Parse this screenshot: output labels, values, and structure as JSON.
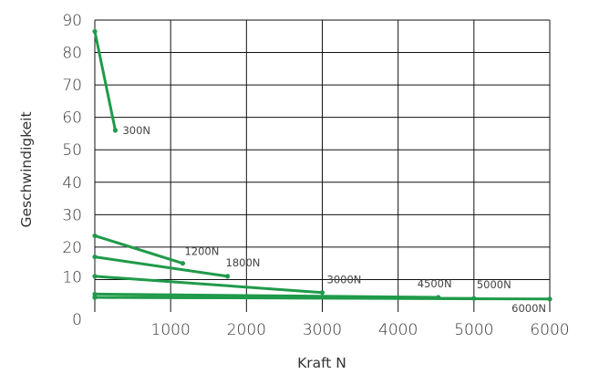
{
  "chart_data": {
    "type": "line",
    "title": "",
    "xlabel": "Kraft N",
    "ylabel": "Geschwindigkeit",
    "xlim": [
      0,
      6000
    ],
    "ylim": [
      0,
      90
    ],
    "x_ticks": [
      "0",
      "1000",
      "2000",
      "3000",
      "4000",
      "5000",
      "6000"
    ],
    "y_ticks": [
      "0",
      "10",
      "20",
      "30",
      "40",
      "50",
      "60",
      "70",
      "80",
      "90"
    ],
    "grid": true,
    "line_color": "#1f9a4a",
    "series": [
      {
        "name": "300N",
        "x": [
          0,
          270
        ],
        "y": [
          86.5,
          56
        ]
      },
      {
        "name": "1200N",
        "x": [
          0,
          1160
        ],
        "y": [
          23.5,
          15
        ]
      },
      {
        "name": "1800N",
        "x": [
          0,
          1750
        ],
        "y": [
          17,
          11
        ]
      },
      {
        "name": "3000N",
        "x": [
          0,
          3000
        ],
        "y": [
          11,
          6
        ]
      },
      {
        "name": "4500N",
        "x": [
          0,
          4530
        ],
        "y": [
          5.5,
          4.5
        ]
      },
      {
        "name": "5000N",
        "x": [
          0,
          5000
        ],
        "y": [
          4.5,
          4.2
        ]
      },
      {
        "name": "6000N",
        "x": [
          0,
          6000
        ],
        "y": [
          4.5,
          4
        ]
      }
    ]
  }
}
